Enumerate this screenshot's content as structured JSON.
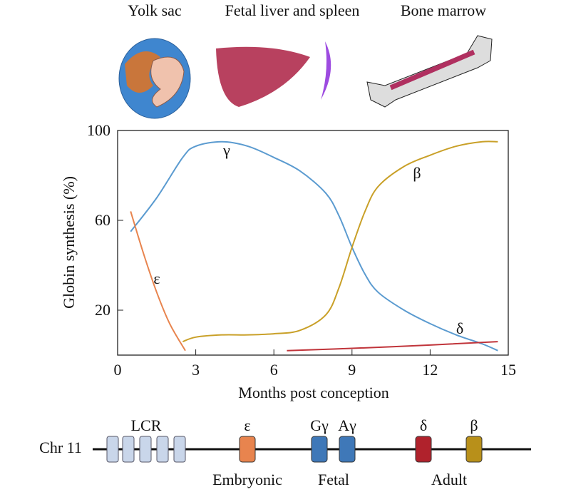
{
  "chart_data": {
    "type": "line",
    "stages": [
      "Yolk sac",
      "Fetal liver and spleen",
      "Bone marrow"
    ],
    "xlabel": "Months post conception",
    "ylabel": "Globin synthesis (%)",
    "xlim": [
      0,
      15
    ],
    "xticks": [
      0,
      3,
      6,
      9,
      12,
      15
    ],
    "ylim": [
      0,
      100
    ],
    "yticks": [
      20,
      60,
      100
    ],
    "series": [
      {
        "name": "γ",
        "color": "#5b9bd0",
        "x": [
          0.5,
          1.5,
          2.5,
          3,
          4,
          5,
          6,
          7,
          8,
          8.5,
          9,
          9.5,
          10,
          11,
          12,
          13,
          14,
          14.6
        ],
        "values": [
          55,
          70,
          88,
          93,
          95,
          93,
          88,
          82,
          72,
          62,
          48,
          36,
          28,
          20,
          14,
          9,
          5,
          2
        ]
      },
      {
        "name": "ε",
        "color": "#e8844e",
        "x": [
          0.5,
          1,
          1.5,
          2,
          2.6
        ],
        "values": [
          64,
          45,
          28,
          14,
          2
        ]
      },
      {
        "name": "β",
        "color": "#c9a028",
        "x": [
          2.5,
          3,
          4,
          5,
          6,
          7,
          8,
          8.5,
          9,
          9.5,
          10,
          11,
          12,
          13,
          14,
          14.6
        ],
        "values": [
          6,
          8,
          9,
          9,
          9.5,
          11,
          18,
          30,
          48,
          64,
          75,
          84,
          89,
          93,
          95,
          95
        ]
      },
      {
        "name": "δ",
        "color": "#c0343a",
        "x": [
          6.5,
          9,
          12,
          14.6
        ],
        "values": [
          2,
          3,
          4.5,
          6
        ]
      }
    ],
    "gene_map": {
      "chromosome": "Chr 11",
      "lcr": "LCR",
      "genes": [
        {
          "label": "ε"
        },
        {
          "label": "Gγ"
        },
        {
          "label": "Aγ"
        },
        {
          "label": "δ"
        },
        {
          "label": "β"
        }
      ],
      "groups": [
        "Embryonic",
        "Fetal",
        "Adult"
      ]
    }
  }
}
